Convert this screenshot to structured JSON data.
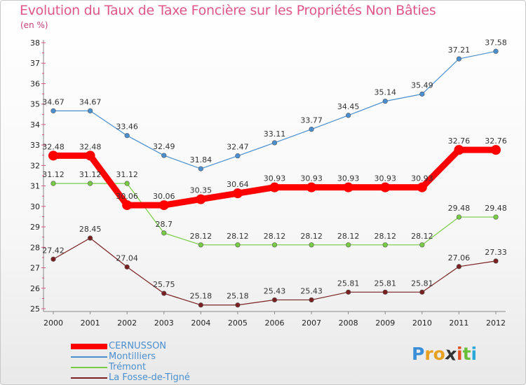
{
  "header": {
    "title": "Evolution du Taux de Taxe Foncière sur les Propriétés Non Bâties",
    "unit": "(en %)"
  },
  "chart_data": {
    "type": "line",
    "title": "Evolution du Taux de Taxe Foncière sur les Propriétés Non Bâties",
    "ylabel": "(en %)",
    "xlabel": "",
    "ylim": [
      25,
      38
    ],
    "yticks": [
      25,
      26,
      27,
      28,
      29,
      30,
      31,
      32,
      33,
      34,
      35,
      36,
      37,
      38
    ],
    "categories": [
      "2000",
      "2001",
      "2002",
      "2003",
      "2004",
      "2005",
      "2006",
      "2007",
      "2008",
      "2009",
      "2010",
      "2011",
      "2012"
    ],
    "series": [
      {
        "name": "CERNUSSON",
        "color": "#ff0000",
        "values": [
          32.48,
          32.48,
          30.06,
          30.06,
          30.35,
          30.64,
          30.93,
          30.93,
          30.93,
          30.93,
          30.93,
          32.76,
          32.76
        ],
        "labels": [
          "32.48",
          "32.48",
          "30.06",
          "30.06",
          "30.35",
          "30.64",
          "30.93",
          "30.93",
          "30.93",
          "30.93",
          "30.93",
          "32.76",
          "32.76"
        ]
      },
      {
        "name": "Montilliers",
        "color": "#4a8fd0",
        "values": [
          34.67,
          34.67,
          33.46,
          32.49,
          31.84,
          32.47,
          33.11,
          33.77,
          34.45,
          35.14,
          35.49,
          37.21,
          37.58
        ],
        "labels": [
          "34.67",
          "34.67",
          "33.46",
          "32.49",
          "31.84",
          "32.47",
          "33.11",
          "33.77",
          "34.45",
          "35.14",
          "35.49",
          "37.21",
          "37.58"
        ]
      },
      {
        "name": "Trémont",
        "color": "#77cc44",
        "values": [
          31.12,
          31.12,
          31.12,
          28.7,
          28.12,
          28.12,
          28.12,
          28.12,
          28.12,
          28.12,
          28.12,
          29.48,
          29.48
        ],
        "labels": [
          "31.12",
          "31.12",
          "31.12",
          "28.7",
          "28.12",
          "28.12",
          "28.12",
          "28.12",
          "28.12",
          "28.12",
          "28.12",
          "29.48",
          "29.48"
        ]
      },
      {
        "name": "La Fosse-de-Tigné",
        "color": "#7a2020",
        "values": [
          27.42,
          28.45,
          27.04,
          25.75,
          25.18,
          25.18,
          25.43,
          25.43,
          25.81,
          25.81,
          25.81,
          27.06,
          27.33
        ],
        "labels": [
          "27.42",
          "28.45",
          "27.04",
          "25.75",
          "25.18",
          "25.18",
          "25.43",
          "25.43",
          "25.81",
          "25.81",
          "25.81",
          "27.06",
          "27.33"
        ]
      }
    ],
    "legend_position": "bottom-left",
    "grid": false
  },
  "logo": {
    "letters": [
      "P",
      "r",
      "o",
      "x",
      "i",
      "t",
      "i"
    ],
    "colors": [
      "#3a8fd8",
      "#e8a020",
      "#e8a020",
      "#333333",
      "#e05020",
      "#6abf3a",
      "#2aa8d8"
    ]
  }
}
